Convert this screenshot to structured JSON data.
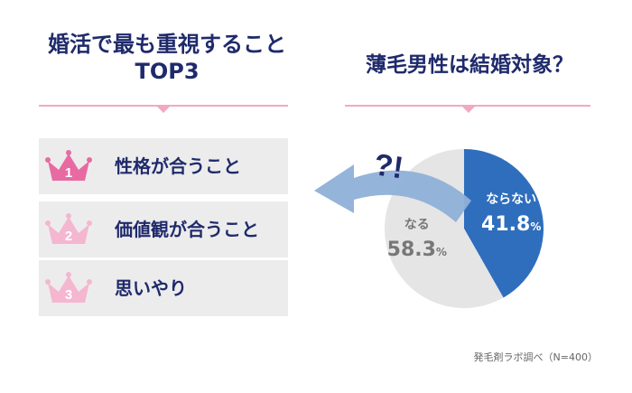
{
  "left_panel": {
    "title_line1": "婚活で最も重視すること",
    "title_line2": "TOP3",
    "ranking": [
      {
        "rank": "1",
        "label": "性格が合うこと",
        "crown_color": "#e86aa3",
        "number_color": "#ffffff"
      },
      {
        "rank": "2",
        "label": "価値観が合うこと",
        "crown_color": "#f5b6d0",
        "number_color": "#ffffff"
      },
      {
        "rank": "3",
        "label": "思いやり",
        "crown_color": "#f5b6d0",
        "number_color": "#ffffff"
      }
    ]
  },
  "right_panel": {
    "title": "薄毛男性は結婚対象？",
    "annotation": "?!"
  },
  "colors": {
    "title_text": "#1f2a6b",
    "underline": "#f1a9c2",
    "rank_bg": "#ececec",
    "slice_nara_nai": "#2f6ebd",
    "slice_naru": "#e5e5e5",
    "arrow": "#8fb0d8"
  },
  "chart_data": {
    "type": "pie",
    "slices": [
      {
        "label": "ならない",
        "value": 41.8,
        "display_value": "41.8",
        "unit": "%",
        "color": "#2f6ebd",
        "text_color": "#ffffff"
      },
      {
        "label": "なる",
        "value": 58.3,
        "display_value": "58.3",
        "unit": "%",
        "color": "#e5e5e5",
        "text_color": "#777777"
      }
    ],
    "start_angle_deg": 0,
    "direction": "clockwise"
  },
  "footer": {
    "source": "発毛剤ラボ調べ（N=400）"
  }
}
